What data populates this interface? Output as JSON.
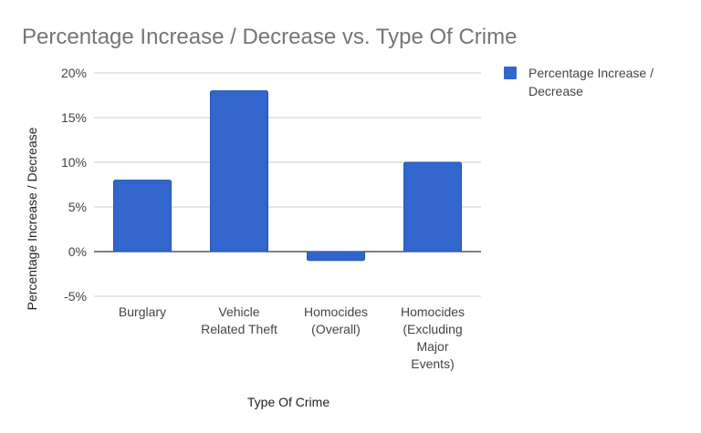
{
  "chart_data": {
    "type": "bar",
    "title": "Percentage Increase / Decrease vs. Type Of Crime",
    "xlabel": "Type Of Crime",
    "ylabel": "Percentage Increase / Decrease",
    "categories": [
      [
        "Burglary"
      ],
      [
        "Vehicle",
        "Related Theft"
      ],
      [
        "Homocides",
        "(Overall)"
      ],
      [
        "Homocides",
        "(Excluding",
        "Major",
        "Events)"
      ]
    ],
    "series": [
      {
        "name": "Percentage Increase / Decrease",
        "color": "#3366cc",
        "values": [
          8,
          18,
          -1,
          10
        ]
      }
    ],
    "ylim": [
      -5,
      20
    ],
    "yticks": [
      20,
      15,
      10,
      5,
      0,
      -5
    ],
    "ytick_labels": [
      "20%",
      "15%",
      "10%",
      "5%",
      "0%",
      "-5%"
    ],
    "grid": true,
    "legend": {
      "position": "right",
      "label_lines": [
        "Percentage Increase /",
        "Decrease"
      ]
    }
  }
}
